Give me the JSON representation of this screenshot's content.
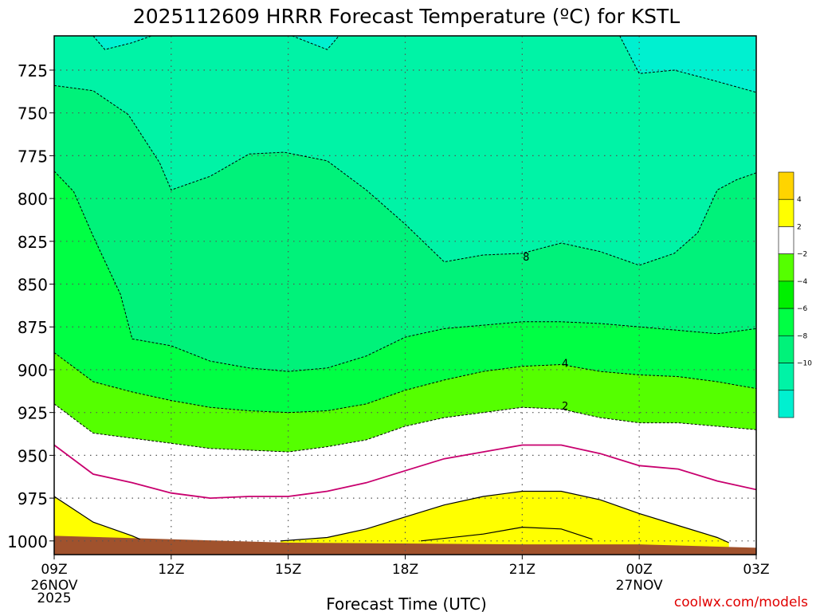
{
  "chart_data": {
    "type": "contour",
    "title": "2025112609 HRRR Forecast Temperature (ºC) for KSTL",
    "xlabel": "Forecast Time (UTC)",
    "ylabel": "",
    "credit": "coolwx.com/models",
    "x_range_hours": [
      0,
      18
    ],
    "y_range_hpa": [
      705,
      1008
    ],
    "x_ticks": [
      {
        "hour": 0,
        "label": "09Z",
        "sub1": "26NOV",
        "sub2": "2025"
      },
      {
        "hour": 3,
        "label": "12Z",
        "sub1": "",
        "sub2": ""
      },
      {
        "hour": 6,
        "label": "15Z",
        "sub1": "",
        "sub2": ""
      },
      {
        "hour": 9,
        "label": "18Z",
        "sub1": "",
        "sub2": ""
      },
      {
        "hour": 12,
        "label": "21Z",
        "sub1": "",
        "sub2": ""
      },
      {
        "hour": 15,
        "label": "00Z",
        "sub1": "27NOV",
        "sub2": ""
      },
      {
        "hour": 18,
        "label": "03Z",
        "sub1": "",
        "sub2": ""
      }
    ],
    "y_ticks": [
      {
        "p": 725,
        "label": "725"
      },
      {
        "p": 750,
        "label": "750"
      },
      {
        "p": 775,
        "label": "775"
      },
      {
        "p": 800,
        "label": "800"
      },
      {
        "p": 825,
        "label": "825"
      },
      {
        "p": 850,
        "label": "850"
      },
      {
        "p": 875,
        "label": "875"
      },
      {
        "p": 900,
        "label": "900"
      },
      {
        "p": 925,
        "label": "925"
      },
      {
        "p": 950,
        "label": "950"
      },
      {
        "p": 975,
        "label": "975"
      },
      {
        "p": 1000,
        "label": "1000"
      }
    ],
    "contour_labels": [
      {
        "text": "8",
        "hour": 12.1,
        "p": 834
      },
      {
        "text": "4",
        "hour": 13.1,
        "p": 896
      },
      {
        "text": "2",
        "hour": 13.1,
        "p": 921
      }
    ],
    "fill_colors": {
      "above_2": "#ffff00",
      "between_0_2": "#ffffff",
      "between_m2_0": "#ffffff",
      "between_m4_m2": "#55ff00",
      "between_m6_m4": "#00ff44",
      "between_m8_m6": "#00f27a",
      "between_m10_m8": "#00f3a6",
      "below_m10": "#00f0d0",
      "ground": "#a0522d",
      "zero_line": "#c8006e"
    },
    "colorbar": [
      {
        "label": "4",
        "color": "#ffd400"
      },
      {
        "label": "2",
        "color": "#ffff00"
      },
      {
        "label": "−2",
        "color": "#ffffff"
      },
      {
        "label": "−4",
        "color": "#55ff00"
      },
      {
        "label": "−6",
        "color": "#00f000"
      },
      {
        "label": "−8",
        "color": "#00ff44"
      },
      {
        "label": "−10",
        "color": "#00f27a"
      },
      {
        "label": "",
        "color": "#00f3a6"
      },
      {
        "label": "",
        "color": "#00f0d0"
      }
    ],
    "isotherms": {
      "m10": [
        [
          1.0,
          705
        ],
        [
          1.3,
          713
        ],
        [
          2.0,
          709
        ],
        [
          2.5,
          705
        ]
      ],
      "m10b": [
        [
          6.1,
          705
        ],
        [
          7.0,
          713
        ],
        [
          7.3,
          705
        ]
      ],
      "m10c": [
        [
          14.5,
          705
        ],
        [
          15.0,
          727
        ],
        [
          15.9,
          725
        ],
        [
          16.9,
          731
        ],
        [
          18.0,
          738
        ]
      ],
      "m8": [
        [
          0.0,
          734
        ],
        [
          1.0,
          737
        ],
        [
          1.9,
          751
        ],
        [
          2.7,
          779
        ],
        [
          3.0,
          795
        ],
        [
          4.0,
          787
        ],
        [
          5.0,
          774
        ],
        [
          5.9,
          773
        ],
        [
          7.0,
          778
        ],
        [
          8.0,
          795
        ],
        [
          9.0,
          815
        ],
        [
          10.0,
          837
        ],
        [
          11.0,
          833
        ],
        [
          12.0,
          832
        ],
        [
          13.0,
          826
        ],
        [
          14.0,
          831
        ],
        [
          15.0,
          839
        ],
        [
          15.9,
          832
        ],
        [
          16.5,
          820
        ],
        [
          17.0,
          795
        ],
        [
          17.5,
          789
        ],
        [
          18.0,
          785
        ]
      ],
      "m6": [
        [
          0.0,
          784
        ],
        [
          0.5,
          796
        ],
        [
          1.0,
          822
        ],
        [
          1.7,
          856
        ],
        [
          2.0,
          882
        ],
        [
          3.0,
          886
        ],
        [
          4.0,
          895
        ],
        [
          5.0,
          899
        ],
        [
          6.0,
          901
        ],
        [
          7.0,
          899
        ],
        [
          8.0,
          892
        ],
        [
          9.0,
          881
        ],
        [
          10.0,
          876
        ],
        [
          11.0,
          874
        ],
        [
          12.0,
          872
        ],
        [
          13.0,
          872
        ],
        [
          14.0,
          873
        ],
        [
          15.0,
          875
        ],
        [
          16.0,
          877
        ],
        [
          17.0,
          879
        ],
        [
          18.0,
          876
        ]
      ],
      "m4": [
        [
          0.0,
          890
        ],
        [
          1.0,
          907
        ],
        [
          2.0,
          913
        ],
        [
          3.0,
          918
        ],
        [
          4.0,
          922
        ],
        [
          5.0,
          924
        ],
        [
          6.0,
          925
        ],
        [
          7.0,
          924
        ],
        [
          8.0,
          920
        ],
        [
          9.0,
          912
        ],
        [
          10.0,
          906
        ],
        [
          11.0,
          901
        ],
        [
          12.0,
          898
        ],
        [
          13.0,
          897
        ],
        [
          14.0,
          901
        ],
        [
          15.0,
          903
        ],
        [
          16.0,
          904
        ],
        [
          17.0,
          907
        ],
        [
          18.0,
          911
        ]
      ],
      "m2": [
        [
          0.0,
          920
        ],
        [
          1.0,
          937
        ],
        [
          2.0,
          940
        ],
        [
          3.0,
          943
        ],
        [
          4.0,
          946
        ],
        [
          5.0,
          947
        ],
        [
          6.0,
          948
        ],
        [
          7.0,
          945
        ],
        [
          8.0,
          941
        ],
        [
          9.0,
          933
        ],
        [
          10.0,
          928
        ],
        [
          11.0,
          925
        ],
        [
          12.0,
          922
        ],
        [
          13.0,
          923
        ],
        [
          14.0,
          928
        ],
        [
          15.0,
          931
        ],
        [
          16.0,
          931
        ],
        [
          17.0,
          933
        ],
        [
          18.0,
          935
        ]
      ],
      "zero": [
        [
          0.0,
          944
        ],
        [
          1.0,
          961
        ],
        [
          2.0,
          966
        ],
        [
          3.0,
          972
        ],
        [
          4.0,
          975
        ],
        [
          5.0,
          974
        ],
        [
          6.0,
          974
        ],
        [
          7.0,
          971
        ],
        [
          8.0,
          966
        ],
        [
          9.0,
          959
        ],
        [
          10.0,
          952
        ],
        [
          11.0,
          948
        ],
        [
          12.0,
          944
        ],
        [
          13.0,
          944
        ],
        [
          14.0,
          949
        ],
        [
          15.0,
          956
        ],
        [
          16.0,
          958
        ],
        [
          17.0,
          965
        ],
        [
          18.0,
          970
        ]
      ],
      "p2_left": [
        [
          0.0,
          974
        ],
        [
          1.0,
          989
        ],
        [
          2.0,
          997
        ],
        [
          2.2,
          999
        ]
      ],
      "p2_mid": [
        [
          5.8,
          1000
        ],
        [
          7.0,
          998
        ],
        [
          8.0,
          993
        ],
        [
          9.0,
          986
        ],
        [
          10.0,
          979
        ],
        [
          11.0,
          974
        ],
        [
          12.0,
          971
        ],
        [
          13.0,
          971
        ],
        [
          14.0,
          976
        ],
        [
          15.0,
          984
        ],
        [
          16.0,
          991
        ],
        [
          17.0,
          998
        ],
        [
          17.3,
          1001
        ]
      ],
      "p4_mid": [
        [
          9.4,
          1000
        ],
        [
          11.0,
          996
        ],
        [
          12.0,
          992
        ],
        [
          13.0,
          993
        ],
        [
          13.8,
          999
        ]
      ],
      "ground": [
        [
          0.0,
          997
        ],
        [
          6.0,
          1001
        ],
        [
          12.0,
          1002
        ],
        [
          15.0,
          1002
        ],
        [
          18.0,
          1004
        ]
      ]
    }
  }
}
